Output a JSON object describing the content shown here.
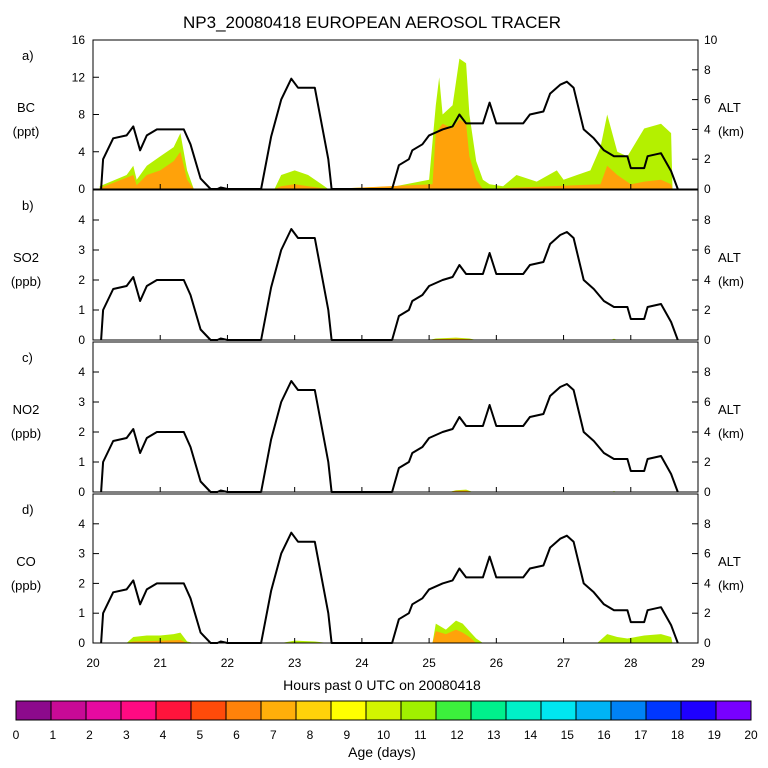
{
  "chart_data": {
    "type": "area",
    "title": "NP3_20080418 EUROPEAN AEROSOL TRACER",
    "xlabel": "Hours past 0 UTC on 20080418",
    "xlim": [
      20,
      29
    ],
    "x_ticks": [
      "20",
      "21",
      "22",
      "23",
      "24",
      "25",
      "26",
      "27",
      "28",
      "29"
    ],
    "right_axis": {
      "label": "ALT",
      "unit": "(km)",
      "ylim": [
        0,
        10
      ]
    },
    "panels": [
      {
        "letter": "a)",
        "species": "BC",
        "unit": "(ppt)",
        "ylim": [
          0,
          16
        ],
        "left_ticks": [
          "0",
          "4",
          "8",
          "12",
          "16"
        ],
        "right_ticks": [
          "0",
          "2",
          "4",
          "6",
          "8",
          "10"
        ],
        "tracer_total": [
          [
            20.1,
            0.3
          ],
          [
            20.5,
            1.5
          ],
          [
            20.6,
            2.5
          ],
          [
            20.65,
            1.0
          ],
          [
            20.8,
            2.5
          ],
          [
            21.0,
            3.5
          ],
          [
            21.2,
            4.5
          ],
          [
            21.3,
            6.0
          ],
          [
            21.4,
            2.0
          ],
          [
            21.5,
            0
          ],
          [
            22.7,
            0
          ],
          [
            22.8,
            1.5
          ],
          [
            23.0,
            2.0
          ],
          [
            23.2,
            1.5
          ],
          [
            23.4,
            0.5
          ],
          [
            23.5,
            0
          ],
          [
            24.5,
            0.3
          ],
          [
            25.0,
            1.0
          ],
          [
            25.1,
            9.0
          ],
          [
            25.15,
            12.0
          ],
          [
            25.2,
            8.0
          ],
          [
            25.35,
            9.0
          ],
          [
            25.45,
            14.0
          ],
          [
            25.55,
            13.5
          ],
          [
            25.6,
            8.0
          ],
          [
            25.7,
            3.0
          ],
          [
            25.8,
            1.0
          ],
          [
            25.9,
            0.5
          ],
          [
            26.1,
            0.3
          ],
          [
            26.3,
            1.5
          ],
          [
            26.6,
            0.8
          ],
          [
            26.9,
            2.0
          ],
          [
            27.0,
            1.0
          ],
          [
            27.2,
            1.5
          ],
          [
            27.4,
            2.0
          ],
          [
            27.55,
            4.5
          ],
          [
            27.65,
            8.0
          ],
          [
            27.8,
            4.0
          ],
          [
            27.95,
            3.5
          ],
          [
            28.2,
            6.5
          ],
          [
            28.45,
            7.0
          ],
          [
            28.6,
            6.0
          ],
          [
            28.62,
            0
          ]
        ],
        "orange_part": [
          [
            20.1,
            0.1
          ],
          [
            20.6,
            1.5
          ],
          [
            20.65,
            0.4
          ],
          [
            20.8,
            1.5
          ],
          [
            21.0,
            2.0
          ],
          [
            21.2,
            3.0
          ],
          [
            21.3,
            4.0
          ],
          [
            21.4,
            1.0
          ],
          [
            21.5,
            0
          ],
          [
            22.7,
            0
          ],
          [
            22.8,
            0.3
          ],
          [
            23.0,
            0.5
          ],
          [
            23.2,
            0.3
          ],
          [
            23.5,
            0
          ],
          [
            25.05,
            0.5
          ],
          [
            25.1,
            6.0
          ],
          [
            25.2,
            7.0
          ],
          [
            25.35,
            6.5
          ],
          [
            25.45,
            7.5
          ],
          [
            25.55,
            7.0
          ],
          [
            25.6,
            3.5
          ],
          [
            25.7,
            1.0
          ],
          [
            25.8,
            0
          ],
          [
            27.55,
            0.5
          ],
          [
            27.65,
            2.5
          ],
          [
            27.8,
            1.5
          ],
          [
            28.0,
            0.5
          ],
          [
            28.2,
            0.8
          ],
          [
            28.45,
            1.0
          ],
          [
            28.6,
            0.5
          ],
          [
            28.62,
            0
          ]
        ]
      },
      {
        "letter": "b)",
        "species": "SO2",
        "unit": "(ppb)",
        "ylim": [
          0,
          5
        ],
        "left_ticks": [
          "0",
          "1",
          "2",
          "3",
          "4"
        ],
        "right_ticks": [
          "0",
          "2",
          "4",
          "6",
          "8"
        ],
        "tracer_total": [
          [
            25.0,
            0
          ],
          [
            25.1,
            0.05
          ],
          [
            25.4,
            0.08
          ],
          [
            25.6,
            0.05
          ],
          [
            25.7,
            0
          ],
          [
            27.7,
            0
          ],
          [
            27.75,
            0.04
          ],
          [
            27.8,
            0
          ]
        ],
        "orange_part": [
          [
            25.0,
            0
          ],
          [
            25.1,
            0.03
          ],
          [
            25.4,
            0.05
          ],
          [
            25.6,
            0.03
          ],
          [
            25.7,
            0
          ]
        ]
      },
      {
        "letter": "c)",
        "species": "NO2",
        "unit": "(ppb)",
        "ylim": [
          0,
          5
        ],
        "left_ticks": [
          "0",
          "1",
          "2",
          "3",
          "4"
        ],
        "right_ticks": [
          "0",
          "2",
          "4",
          "6",
          "8"
        ],
        "tracer_total": [
          [
            25.3,
            0
          ],
          [
            25.4,
            0.06
          ],
          [
            25.55,
            0.08
          ],
          [
            25.65,
            0
          ],
          [
            27.7,
            0
          ],
          [
            27.75,
            0.03
          ],
          [
            27.8,
            0
          ]
        ],
        "orange_part": [
          [
            25.3,
            0
          ],
          [
            25.4,
            0.04
          ],
          [
            25.55,
            0.05
          ],
          [
            25.65,
            0
          ]
        ]
      },
      {
        "letter": "d)",
        "species": "CO",
        "unit": "(ppb)",
        "ylim": [
          0,
          5
        ],
        "left_ticks": [
          "0",
          "1",
          "2",
          "3",
          "4"
        ],
        "right_ticks": [
          "0",
          "2",
          "4",
          "6",
          "8"
        ],
        "tracer_total": [
          [
            20.5,
            0
          ],
          [
            20.6,
            0.2
          ],
          [
            20.8,
            0.25
          ],
          [
            21.0,
            0.25
          ],
          [
            21.2,
            0.3
          ],
          [
            21.3,
            0.35
          ],
          [
            21.4,
            0.05
          ],
          [
            21.5,
            0
          ],
          [
            22.8,
            0
          ],
          [
            23.0,
            0.08
          ],
          [
            23.3,
            0.05
          ],
          [
            23.5,
            0
          ],
          [
            25.05,
            0
          ],
          [
            25.1,
            0.65
          ],
          [
            25.25,
            0.45
          ],
          [
            25.4,
            0.75
          ],
          [
            25.5,
            0.65
          ],
          [
            25.6,
            0.4
          ],
          [
            25.7,
            0.15
          ],
          [
            25.8,
            0
          ],
          [
            27.5,
            0
          ],
          [
            27.65,
            0.3
          ],
          [
            27.8,
            0.2
          ],
          [
            27.95,
            0.15
          ],
          [
            28.2,
            0.25
          ],
          [
            28.45,
            0.3
          ],
          [
            28.6,
            0.2
          ],
          [
            28.62,
            0
          ]
        ],
        "orange_part": [
          [
            20.5,
            0
          ],
          [
            20.6,
            0.05
          ],
          [
            21.3,
            0.1
          ],
          [
            21.4,
            0
          ],
          [
            25.05,
            0
          ],
          [
            25.1,
            0.4
          ],
          [
            25.25,
            0.3
          ],
          [
            25.4,
            0.45
          ],
          [
            25.5,
            0.35
          ],
          [
            25.6,
            0.2
          ],
          [
            25.7,
            0
          ]
        ]
      }
    ],
    "altitude_km": [
      [
        20.12,
        0.0
      ],
      [
        20.15,
        2.0
      ],
      [
        20.3,
        3.4
      ],
      [
        20.5,
        3.6
      ],
      [
        20.6,
        4.2
      ],
      [
        20.7,
        2.6
      ],
      [
        20.8,
        3.6
      ],
      [
        20.95,
        4.0
      ],
      [
        21.35,
        4.0
      ],
      [
        21.45,
        3.0
      ],
      [
        21.6,
        0.7
      ],
      [
        21.75,
        0.0
      ],
      [
        21.85,
        0.0
      ],
      [
        21.9,
        0.1
      ],
      [
        22.0,
        0.0
      ],
      [
        22.5,
        0.0
      ],
      [
        22.65,
        3.5
      ],
      [
        22.8,
        6.0
      ],
      [
        22.95,
        7.4
      ],
      [
        23.05,
        6.8
      ],
      [
        23.3,
        6.8
      ],
      [
        23.5,
        2.0
      ],
      [
        23.55,
        0.0
      ],
      [
        24.3,
        0.0
      ],
      [
        24.45,
        0.0
      ],
      [
        24.55,
        1.6
      ],
      [
        24.7,
        2.0
      ],
      [
        24.75,
        2.6
      ],
      [
        24.9,
        3.0
      ],
      [
        25.0,
        3.6
      ],
      [
        25.2,
        4.0
      ],
      [
        25.35,
        4.2
      ],
      [
        25.45,
        5.0
      ],
      [
        25.55,
        4.4
      ],
      [
        25.8,
        4.4
      ],
      [
        25.9,
        5.8
      ],
      [
        26.0,
        4.4
      ],
      [
        26.4,
        4.4
      ],
      [
        26.5,
        5.0
      ],
      [
        26.7,
        5.2
      ],
      [
        26.8,
        6.4
      ],
      [
        26.95,
        7.0
      ],
      [
        27.05,
        7.2
      ],
      [
        27.15,
        6.8
      ],
      [
        27.3,
        4.0
      ],
      [
        27.45,
        3.4
      ],
      [
        27.6,
        2.6
      ],
      [
        27.75,
        2.2
      ],
      [
        27.95,
        2.2
      ],
      [
        28.0,
        1.4
      ],
      [
        28.2,
        1.4
      ],
      [
        28.25,
        2.2
      ],
      [
        28.45,
        2.4
      ],
      [
        28.6,
        1.2
      ],
      [
        28.7,
        0.0
      ]
    ],
    "colorbar": {
      "label": "Age (days)",
      "ticks": [
        "0",
        "1",
        "2",
        "3",
        "4",
        "5",
        "6",
        "7",
        "8",
        "9",
        "10",
        "11",
        "12",
        "13",
        "14",
        "15",
        "16",
        "17",
        "18",
        "19",
        "20"
      ],
      "colors": [
        "#8c0a8c",
        "#c80a96",
        "#e60aa0",
        "#ff0a82",
        "#ff143c",
        "#ff4b0a",
        "#ff820a",
        "#ffaf0a",
        "#ffd20a",
        "#ffff00",
        "#d2f500",
        "#a0f000",
        "#3cf03c",
        "#00f08c",
        "#00f0c8",
        "#00e6f0",
        "#00b4f5",
        "#0082f5",
        "#0037ff",
        "#1e00ff",
        "#7800ff"
      ]
    }
  }
}
